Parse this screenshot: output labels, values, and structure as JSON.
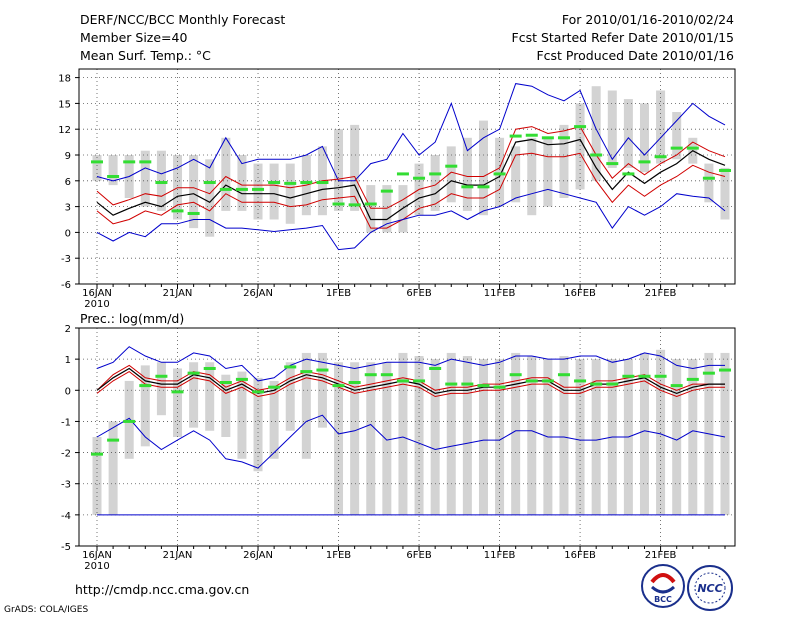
{
  "header": {
    "title": "DERF/NCC/BCC Monthly Forecast",
    "member_size": "Member Size=40",
    "variable": "Mean Surf. Temp.: °C",
    "fcst_period": "For 2010/01/16-2010/02/24",
    "fcst_started": "Fcst Started Refer Date 2010/01/15",
    "fcst_produced": "Fcst Produced Date 2010/01/16"
  },
  "footer": {
    "url": "http://cmdp.ncc.cma.gov.cn",
    "grads": "GrADS: COLA/IGES",
    "logo_bcc": "BCC",
    "logo_ncc": "NCC"
  },
  "colors": {
    "bar": "#d3d3d3",
    "mean": "#000000",
    "spread": "#d00000",
    "envelope": "#0000cc",
    "obs": "#33dd33",
    "grid": "#555555"
  },
  "chart_data": [
    {
      "type": "line",
      "title": "Mean Surf. Temp.: °C",
      "ylim": [
        -6,
        19
      ],
      "yticks": [
        -6,
        -3,
        0,
        3,
        6,
        9,
        12,
        15,
        18
      ],
      "x_tick_labels": [
        "16JAN",
        "21JAN",
        "26JAN",
        "1FEB",
        "6FEB",
        "11FEB",
        "16FEB",
        "21FEB"
      ],
      "x_tick_sublabel": "2010",
      "days": 40,
      "bar_low": [
        6,
        5.5,
        4,
        3,
        2.5,
        1.5,
        0.5,
        -0.5,
        2.5,
        2.5,
        1.5,
        1.5,
        1,
        2,
        2,
        2.5,
        2.5,
        0,
        0,
        0,
        2,
        2.5,
        3.5,
        2.5,
        2,
        3,
        3.5,
        2,
        3,
        4,
        5,
        6,
        7.5,
        7.5,
        7,
        8,
        8.5,
        8,
        3.5,
        1.5
      ],
      "bar_high": [
        9,
        9,
        9,
        9.5,
        9.5,
        9,
        9,
        8.5,
        11,
        9,
        8,
        8,
        8,
        9,
        10,
        12,
        12.5,
        5.5,
        5.5,
        5.5,
        8,
        9,
        10,
        11,
        13,
        11,
        10,
        11,
        11,
        12.5,
        15,
        17,
        16.5,
        15.5,
        15,
        16.5,
        14,
        11,
        8,
        7.5
      ],
      "series": [
        {
          "name": "envelope_max",
          "values": [
            6.5,
            6,
            6.5,
            7.5,
            6.8,
            7.5,
            8.5,
            7.5,
            11,
            8,
            8.5,
            8.5,
            8.5,
            9,
            10,
            6,
            6,
            8,
            8.5,
            11.5,
            9,
            10.5,
            15,
            9.5,
            11,
            12,
            17.3,
            17,
            16,
            15.3,
            16.5,
            12,
            8.5,
            11,
            9,
            11,
            13,
            15,
            13.5,
            12.5
          ]
        },
        {
          "name": "spread_upper",
          "values": [
            4.8,
            3.2,
            3.8,
            4.5,
            4.2,
            5.2,
            5.2,
            4.5,
            6.5,
            5.5,
            5.5,
            5.5,
            5.2,
            5.5,
            6,
            6.2,
            6.5,
            2.8,
            2.8,
            3.8,
            5,
            5.5,
            7,
            6.5,
            6.5,
            7.5,
            12,
            12.3,
            11.5,
            11.8,
            12.3,
            9,
            6.3,
            8,
            6.7,
            8,
            9,
            10.5,
            9.5,
            8.8
          ]
        },
        {
          "name": "ensemble_mean",
          "values": [
            3.5,
            2,
            2.8,
            3.5,
            3,
            4.2,
            4.5,
            3.5,
            5.5,
            4.5,
            4.5,
            4.5,
            4,
            4.5,
            5,
            5.2,
            5.5,
            1.5,
            1.5,
            2.8,
            4,
            4.5,
            6,
            5.5,
            5.5,
            6.5,
            10.5,
            10.8,
            10.2,
            10.3,
            10.8,
            7.5,
            5,
            7,
            5.7,
            7,
            8,
            9.5,
            8.5,
            7.8
          ]
        },
        {
          "name": "spread_lower",
          "values": [
            2.5,
            1,
            1.5,
            2.5,
            2,
            3.2,
            3.5,
            2.5,
            4.5,
            3.5,
            3.5,
            3.5,
            3,
            3.2,
            3.8,
            4,
            4.2,
            0.5,
            0.5,
            1.5,
            2.8,
            3.3,
            4.5,
            4,
            4,
            5,
            9,
            9.2,
            8.8,
            8.8,
            9.2,
            6,
            3.5,
            5.5,
            4.2,
            5.5,
            6.5,
            7.8,
            7,
            6.5
          ]
        },
        {
          "name": "envelope_min",
          "values": [
            0,
            -1,
            0,
            -0.5,
            1,
            1,
            1.5,
            1.5,
            0.5,
            0.5,
            0.3,
            0.1,
            0.3,
            0.5,
            0.8,
            -2,
            -1.8,
            0,
            1,
            1.5,
            2,
            2,
            2.5,
            1.5,
            2.5,
            3,
            4,
            4.5,
            5,
            4.5,
            4,
            3.5,
            0.5,
            3,
            2,
            3,
            4.5,
            4.2,
            4,
            2.5
          ]
        }
      ],
      "observed": [
        8.2,
        6.5,
        8.2,
        8.2,
        5.8,
        2.5,
        2.2,
        5.8,
        5,
        5,
        5,
        5.8,
        5.7,
        5.8,
        5.8,
        3.3,
        3.2,
        3.3,
        4.8,
        6.8,
        6.3,
        6.8,
        7.7,
        5.3,
        5.3,
        6.8,
        11.2,
        11.3,
        11,
        11,
        12.3,
        9,
        8,
        6.8,
        8.2,
        8.8,
        9.8,
        9.8,
        6.3,
        7.2
      ]
    },
    {
      "type": "line",
      "title": "Prec.: log(mm/d)",
      "ylim": [
        -5,
        2
      ],
      "yticks": [
        -5,
        -4,
        -3,
        -2,
        -1,
        0,
        1,
        2
      ],
      "x_tick_labels": [
        "16JAN",
        "21JAN",
        "26JAN",
        "1FEB",
        "6FEB",
        "11FEB",
        "16FEB",
        "21FEB"
      ],
      "x_tick_sublabel": "2010",
      "days": 40,
      "baseline": -4,
      "bar_low": [
        -4,
        -4,
        -2.2,
        -1.8,
        -0.8,
        -1.5,
        -1.2,
        -1.3,
        -1.5,
        -2.2,
        -2.6,
        -2.2,
        -1.3,
        -2.2,
        -1.2,
        -4,
        -4,
        -4,
        -4,
        -4,
        -4,
        -4,
        -4,
        -4,
        -4,
        -4,
        -4,
        -4,
        -4,
        -4,
        -4,
        -4,
        -4,
        -4,
        -4,
        -4,
        -4,
        -4,
        -4,
        -4
      ],
      "bar_high": [
        -1.5,
        -1,
        0.3,
        0.8,
        0.9,
        0.7,
        0.9,
        0.9,
        0.5,
        0.6,
        0.4,
        0.3,
        0.9,
        1.2,
        1.2,
        0.9,
        0.9,
        0.9,
        0.9,
        1.2,
        1.1,
        1.0,
        1.2,
        1.1,
        1.0,
        1.0,
        1.2,
        1.1,
        1.0,
        1.1,
        1.0,
        1.0,
        1.0,
        1.0,
        1.2,
        1.3,
        1.0,
        1.0,
        1.2,
        1.2
      ],
      "series": [
        {
          "name": "envelope_max",
          "values": [
            0.7,
            0.9,
            1.4,
            1.1,
            0.9,
            0.9,
            1.2,
            1.1,
            0.7,
            0.8,
            0.3,
            0.4,
            0.8,
            1.0,
            0.9,
            0.8,
            0.7,
            0.8,
            0.9,
            0.9,
            0.9,
            0.8,
            1.0,
            0.9,
            0.8,
            0.9,
            1.1,
            1.1,
            1.0,
            1.0,
            1.1,
            1.1,
            0.9,
            1.0,
            1.2,
            1.1,
            0.8,
            0.7,
            0.8,
            0.8
          ]
        },
        {
          "name": "spread_upper",
          "values": [
            0.0,
            0.5,
            0.8,
            0.4,
            0.3,
            0.3,
            0.6,
            0.5,
            0.1,
            0.3,
            0.0,
            0.1,
            0.4,
            0.6,
            0.5,
            0.3,
            0.1,
            0.2,
            0.3,
            0.4,
            0.3,
            0.0,
            0.1,
            0.1,
            0.2,
            0.2,
            0.3,
            0.4,
            0.4,
            0.1,
            0.1,
            0.3,
            0.3,
            0.4,
            0.5,
            0.2,
            0.0,
            0.2,
            0.2,
            0.2
          ]
        },
        {
          "name": "ensemble_mean",
          "values": [
            0.0,
            0.4,
            0.7,
            0.3,
            0.2,
            0.2,
            0.5,
            0.4,
            0.0,
            0.2,
            -0.1,
            0.0,
            0.3,
            0.5,
            0.4,
            0.2,
            0.0,
            0.1,
            0.2,
            0.3,
            0.2,
            -0.1,
            0.0,
            0.0,
            0.1,
            0.1,
            0.2,
            0.3,
            0.3,
            0.0,
            0.0,
            0.2,
            0.2,
            0.3,
            0.4,
            0.1,
            -0.1,
            0.1,
            0.2,
            0.2
          ]
        },
        {
          "name": "spread_lower",
          "values": [
            -0.1,
            0.3,
            0.6,
            0.2,
            0.1,
            0.1,
            0.4,
            0.3,
            -0.1,
            0.1,
            -0.2,
            -0.1,
            0.2,
            0.4,
            0.3,
            0.1,
            -0.1,
            0.0,
            0.1,
            0.2,
            0.1,
            -0.2,
            -0.1,
            -0.1,
            0.0,
            0.0,
            0.1,
            0.2,
            0.2,
            -0.1,
            -0.1,
            0.1,
            0.1,
            0.2,
            0.3,
            0.0,
            -0.2,
            0.0,
            0.1,
            0.1
          ]
        },
        {
          "name": "envelope_min",
          "values": [
            -1.5,
            -1.2,
            -0.9,
            -1.5,
            -1.9,
            -1.6,
            -1.3,
            -1.6,
            -2.2,
            -2.3,
            -2.5,
            -2.0,
            -1.5,
            -1.0,
            -0.8,
            -1.4,
            -1.3,
            -1.1,
            -1.6,
            -1.5,
            -1.7,
            -1.9,
            -1.8,
            -1.7,
            -1.6,
            -1.6,
            -1.3,
            -1.3,
            -1.5,
            -1.5,
            -1.6,
            -1.6,
            -1.5,
            -1.5,
            -1.3,
            -1.4,
            -1.6,
            -1.3,
            -1.4,
            -1.5
          ]
        }
      ],
      "observed": [
        -2.05,
        -1.6,
        -1.0,
        0.15,
        0.45,
        -0.05,
        0.55,
        0.7,
        0.25,
        0.35,
        -0.05,
        0.1,
        0.75,
        0.6,
        0.65,
        0.15,
        0.25,
        0.5,
        0.5,
        0.3,
        0.3,
        0.7,
        0.2,
        0.2,
        0.15,
        0.1,
        0.5,
        0.3,
        0.3,
        0.5,
        0.3,
        0.2,
        0.2,
        0.45,
        0.45,
        0.45,
        0.15,
        0.35,
        0.55,
        0.65
      ]
    }
  ]
}
